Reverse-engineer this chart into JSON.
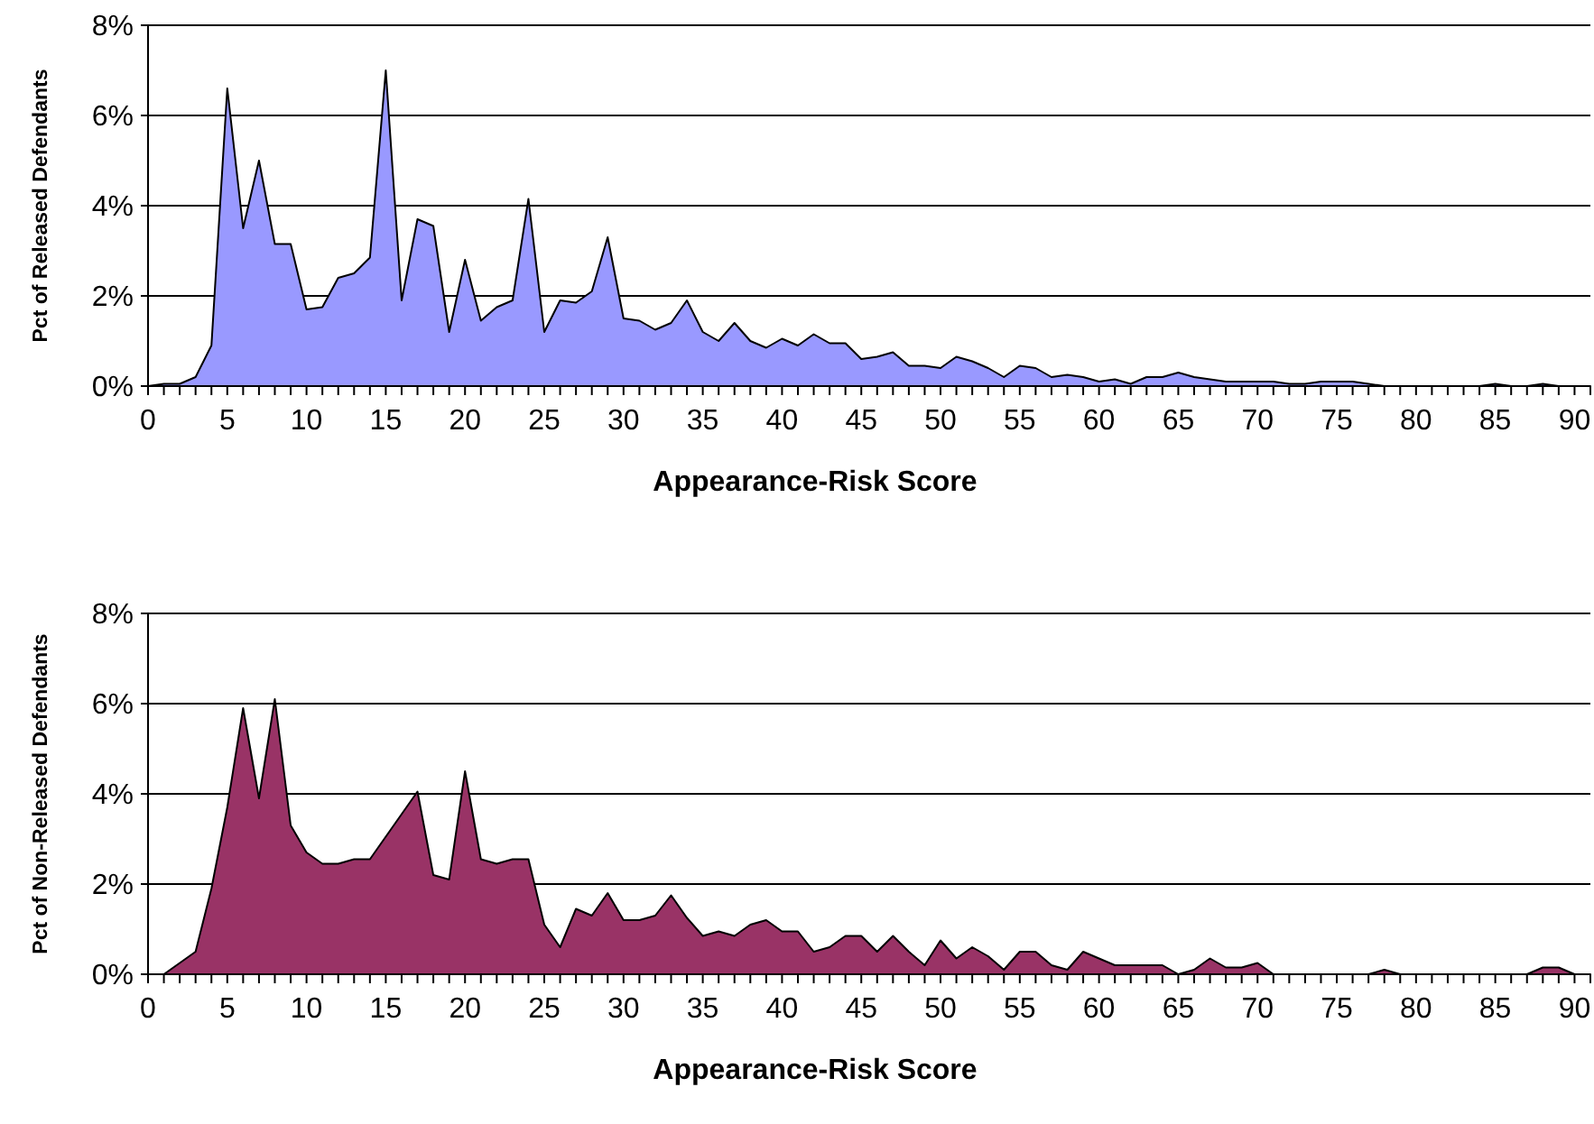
{
  "chart_data": [
    {
      "type": "area",
      "xlabel": "Appearance-Risk Score",
      "ylabel": "Pct of Released Defendants",
      "categories": [
        "0",
        null,
        null,
        null,
        null,
        "5",
        null,
        null,
        null,
        null,
        "10",
        null,
        null,
        null,
        null,
        "15",
        null,
        null,
        null,
        null,
        "20",
        null,
        null,
        null,
        null,
        "25",
        null,
        null,
        null,
        null,
        "30",
        null,
        null,
        null,
        null,
        "35",
        null,
        null,
        null,
        null,
        "40",
        null,
        null,
        null,
        null,
        "45",
        null,
        null,
        null,
        null,
        "50",
        null,
        null,
        null,
        null,
        "55",
        null,
        null,
        null,
        null,
        "60",
        null,
        null,
        null,
        null,
        "65",
        null,
        null,
        null,
        null,
        "70",
        null,
        null,
        null,
        null,
        "75",
        null,
        null,
        null,
        null,
        "80",
        null,
        null,
        null,
        null,
        "85",
        null,
        null,
        null,
        null,
        "90",
        null
      ],
      "series": [
        {
          "color": "#9999ff",
          "values": [
            0,
            0.05,
            0.05,
            0.2,
            0.9,
            6.6,
            3.5,
            5.0,
            3.15,
            3.15,
            1.7,
            1.75,
            2.4,
            2.5,
            2.85,
            7.0,
            1.9,
            3.7,
            3.55,
            1.2,
            2.8,
            1.45,
            1.75,
            1.9,
            4.15,
            1.2,
            1.9,
            1.85,
            2.1,
            3.3,
            1.5,
            1.45,
            1.25,
            1.4,
            1.9,
            1.2,
            1.0,
            1.4,
            1.0,
            0.85,
            1.05,
            0.9,
            1.15,
            0.95,
            0.95,
            0.6,
            0.65,
            0.75,
            0.45,
            0.45,
            0.4,
            0.65,
            0.55,
            0.4,
            0.2,
            0.45,
            0.4,
            0.2,
            0.25,
            0.2,
            0.1,
            0.15,
            0.05,
            0.2,
            0.2,
            0.3,
            0.2,
            0.15,
            0.1,
            0.1,
            0.1,
            0.1,
            0.05,
            0.05,
            0.1,
            0.1,
            0.1,
            0.05,
            0,
            0,
            0,
            0,
            0,
            0,
            0,
            0.05,
            0,
            0,
            0.05,
            0,
            0,
            0
          ]
        }
      ],
      "ylim": [
        0,
        8
      ],
      "yticks": [
        {
          "value": 0,
          "label": "0%"
        },
        {
          "value": 2,
          "label": "2%"
        },
        {
          "value": 4,
          "label": "4%"
        },
        {
          "value": 6,
          "label": "6%"
        },
        {
          "value": 8,
          "label": "8%"
        }
      ],
      "grid": "y"
    },
    {
      "type": "area",
      "xlabel": "Appearance-Risk Score",
      "ylabel": "Pct of Non-Released Defendants",
      "categories": [
        "0",
        null,
        null,
        null,
        null,
        "5",
        null,
        null,
        null,
        null,
        "10",
        null,
        null,
        null,
        null,
        "15",
        null,
        null,
        null,
        null,
        "20",
        null,
        null,
        null,
        null,
        "25",
        null,
        null,
        null,
        null,
        "30",
        null,
        null,
        null,
        null,
        "35",
        null,
        null,
        null,
        null,
        "40",
        null,
        null,
        null,
        null,
        "45",
        null,
        null,
        null,
        null,
        "50",
        null,
        null,
        null,
        null,
        "55",
        null,
        null,
        null,
        null,
        "60",
        null,
        null,
        null,
        null,
        "65",
        null,
        null,
        null,
        null,
        "70",
        null,
        null,
        null,
        null,
        "75",
        null,
        null,
        null,
        null,
        "80",
        null,
        null,
        null,
        null,
        "85",
        null,
        null,
        null,
        null,
        "90",
        null
      ],
      "series": [
        {
          "color": "#993366",
          "values": [
            0,
            0,
            0.25,
            0.5,
            1.9,
            3.7,
            5.9,
            3.9,
            6.1,
            3.3,
            2.7,
            2.45,
            2.45,
            2.55,
            2.55,
            3.05,
            3.55,
            4.05,
            2.2,
            2.1,
            4.5,
            2.55,
            2.45,
            2.55,
            2.55,
            1.1,
            0.6,
            1.45,
            1.3,
            1.8,
            1.2,
            1.2,
            1.3,
            1.75,
            1.25,
            0.85,
            0.95,
            0.85,
            1.1,
            1.2,
            0.95,
            0.95,
            0.5,
            0.6,
            0.85,
            0.85,
            0.5,
            0.85,
            0.5,
            0.2,
            0.75,
            0.35,
            0.6,
            0.4,
            0.1,
            0.5,
            0.5,
            0.2,
            0.1,
            0.5,
            0.35,
            0.2,
            0.2,
            0.2,
            0.2,
            0,
            0.1,
            0.35,
            0.15,
            0.15,
            0.25,
            0,
            0,
            0,
            0,
            0,
            0,
            0,
            0.1,
            0,
            0,
            0,
            0,
            0,
            0,
            0,
            0,
            0,
            0.15,
            0.15,
            0,
            0
          ]
        }
      ],
      "ylim": [
        0,
        8
      ],
      "yticks": [
        {
          "value": 0,
          "label": "0%"
        },
        {
          "value": 2,
          "label": "2%"
        },
        {
          "value": 4,
          "label": "4%"
        },
        {
          "value": 6,
          "label": "6%"
        },
        {
          "value": 8,
          "label": "8%"
        }
      ],
      "grid": "y"
    }
  ]
}
